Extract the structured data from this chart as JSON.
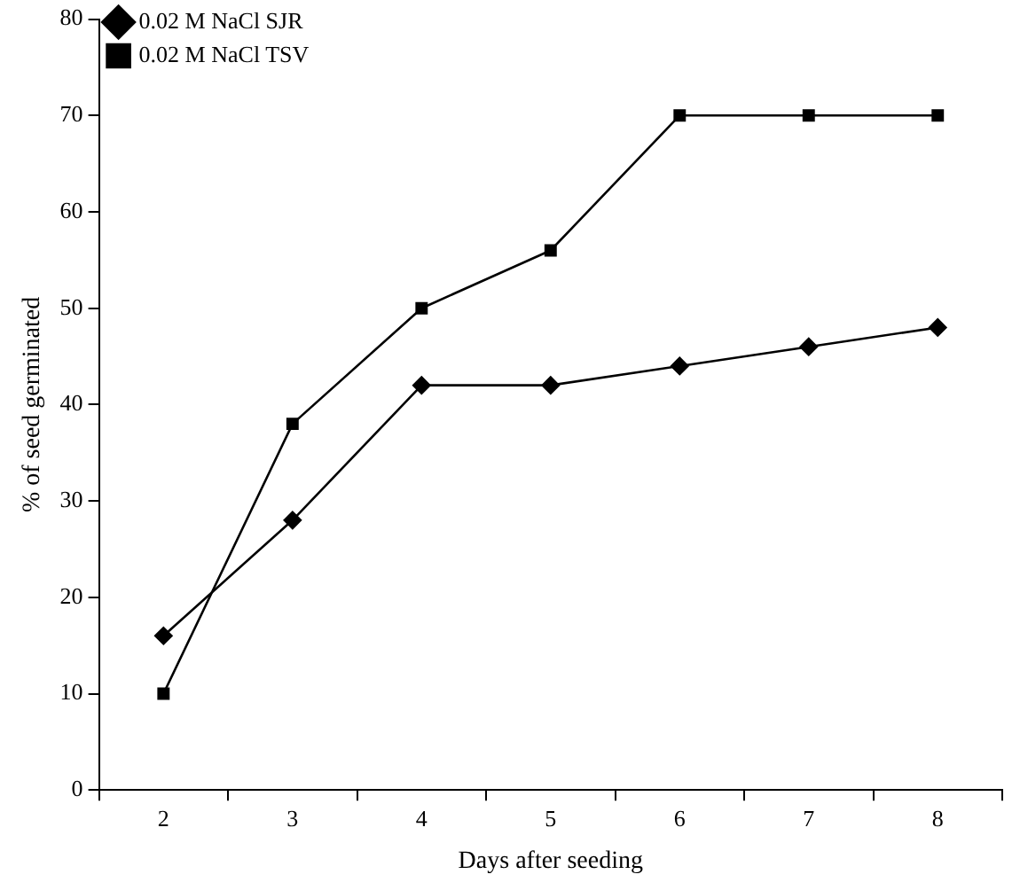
{
  "chart_data": {
    "type": "line",
    "xlabel": "Days after seeding",
    "ylabel": "% of seed germinated",
    "categories": [
      "2",
      "3",
      "4",
      "5",
      "6",
      "7",
      "8"
    ],
    "series": [
      {
        "name": "0.02 M NaCl SJR",
        "color": "#000000",
        "marker": "diamond",
        "values": [
          16,
          28,
          42,
          42,
          44,
          46,
          48
        ]
      },
      {
        "name": "0.02 M NaCl TSV",
        "color": "#000000",
        "marker": "square",
        "values": [
          10,
          38,
          50,
          56,
          70,
          70,
          70
        ]
      }
    ],
    "ylim": [
      0,
      80
    ],
    "yticks": [
      0,
      10,
      20,
      30,
      40,
      50,
      60,
      70,
      80
    ],
    "grid": false,
    "legend": "top left",
    "line_style": "solid"
  }
}
